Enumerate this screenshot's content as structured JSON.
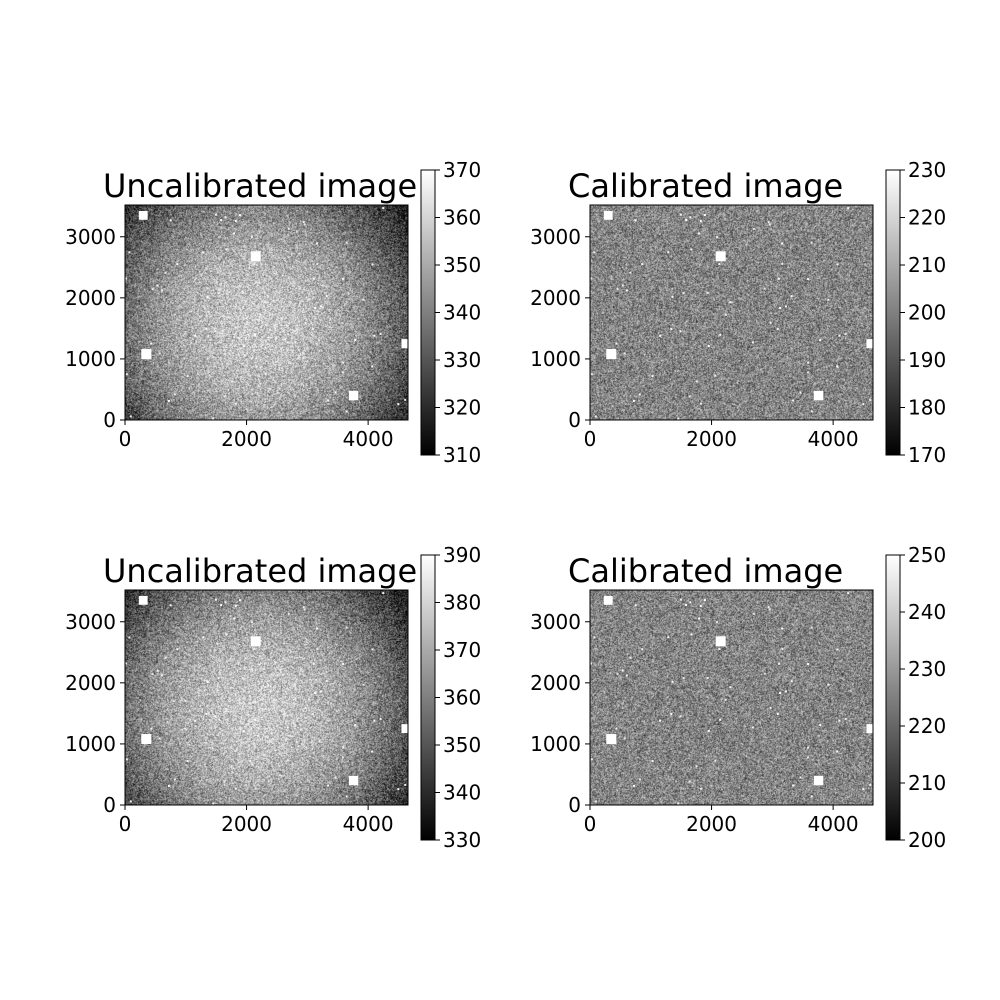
{
  "chart_data": [
    {
      "type": "heatmap",
      "title": "Uncalibrated image",
      "colormap": "gray",
      "xlim": [
        0,
        4656
      ],
      "ylim": [
        0,
        3520
      ],
      "xticks": [
        0,
        2000,
        4000
      ],
      "yticks": [
        0,
        1000,
        2000,
        3000
      ],
      "colorbar": {
        "range": [
          310,
          370
        ],
        "ticks": [
          310,
          320,
          330,
          340,
          350,
          360,
          370
        ]
      },
      "value_range": [
        310,
        370
      ],
      "vignetting": true,
      "bright_sources": [
        {
          "x": 2150,
          "y": 2680,
          "intensity": 1.0
        },
        {
          "x": 350,
          "y": 1080,
          "intensity": 1.0
        },
        {
          "x": 3760,
          "y": 400,
          "intensity": 0.9
        },
        {
          "x": 4660,
          "y": 1250,
          "intensity": 0.85
        },
        {
          "x": 300,
          "y": 3350,
          "intensity": 0.8
        }
      ]
    },
    {
      "type": "heatmap",
      "title": "Calibrated image",
      "colormap": "gray",
      "xlim": [
        0,
        4656
      ],
      "ylim": [
        0,
        3520
      ],
      "xticks": [
        0,
        2000,
        4000
      ],
      "yticks": [
        0,
        1000,
        2000,
        3000
      ],
      "colorbar": {
        "range": [
          170,
          230
        ],
        "ticks": [
          170,
          180,
          190,
          200,
          210,
          220,
          230
        ]
      },
      "value_range": [
        170,
        230
      ],
      "vignetting": false,
      "bright_sources": [
        {
          "x": 2150,
          "y": 2680,
          "intensity": 1.0
        },
        {
          "x": 350,
          "y": 1080,
          "intensity": 1.0
        },
        {
          "x": 3760,
          "y": 400,
          "intensity": 0.9
        },
        {
          "x": 4660,
          "y": 1250,
          "intensity": 0.85
        },
        {
          "x": 300,
          "y": 3350,
          "intensity": 0.8
        }
      ]
    },
    {
      "type": "heatmap",
      "title": "Uncalibrated image",
      "colormap": "gray",
      "xlim": [
        0,
        4656
      ],
      "ylim": [
        0,
        3520
      ],
      "xticks": [
        0,
        2000,
        4000
      ],
      "yticks": [
        0,
        1000,
        2000,
        3000
      ],
      "colorbar": {
        "range": [
          330,
          390
        ],
        "ticks": [
          330,
          340,
          350,
          360,
          370,
          380,
          390
        ]
      },
      "value_range": [
        330,
        390
      ],
      "vignetting": true,
      "bright_sources": [
        {
          "x": 2150,
          "y": 2680,
          "intensity": 1.0
        },
        {
          "x": 350,
          "y": 1080,
          "intensity": 1.0
        },
        {
          "x": 3760,
          "y": 400,
          "intensity": 0.9
        },
        {
          "x": 4660,
          "y": 1250,
          "intensity": 0.85
        },
        {
          "x": 300,
          "y": 3350,
          "intensity": 0.8
        }
      ]
    },
    {
      "type": "heatmap",
      "title": "Calibrated image",
      "colormap": "gray",
      "xlim": [
        0,
        4656
      ],
      "ylim": [
        0,
        3520
      ],
      "xticks": [
        0,
        2000,
        4000
      ],
      "yticks": [
        0,
        1000,
        2000,
        3000
      ],
      "colorbar": {
        "range": [
          200,
          250
        ],
        "ticks": [
          200,
          210,
          220,
          230,
          240,
          250
        ]
      },
      "value_range": [
        200,
        250
      ],
      "vignetting": false,
      "bright_sources": [
        {
          "x": 2150,
          "y": 2680,
          "intensity": 1.0
        },
        {
          "x": 350,
          "y": 1080,
          "intensity": 1.0
        },
        {
          "x": 3760,
          "y": 400,
          "intensity": 0.9
        },
        {
          "x": 4660,
          "y": 1250,
          "intensity": 0.85
        },
        {
          "x": 300,
          "y": 3350,
          "intensity": 0.8
        }
      ]
    }
  ]
}
